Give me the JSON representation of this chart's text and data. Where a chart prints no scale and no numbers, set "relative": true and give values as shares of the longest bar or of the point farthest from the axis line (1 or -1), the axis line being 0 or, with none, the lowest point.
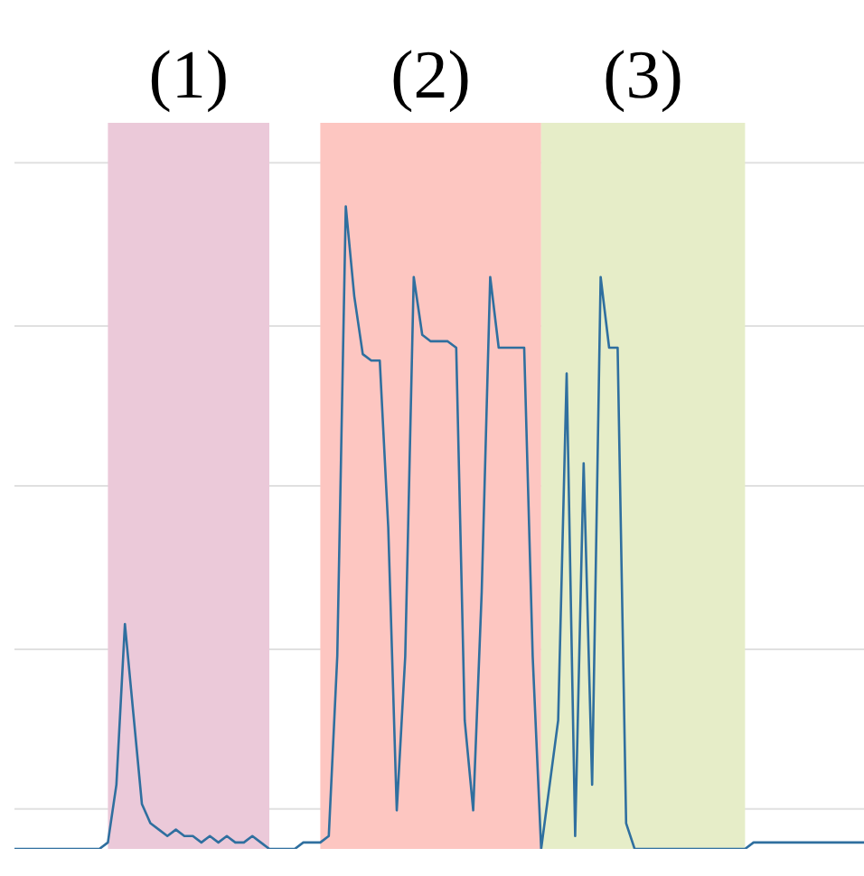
{
  "chart_data": {
    "type": "line",
    "relative": true,
    "tick_labels": false,
    "grid": "y",
    "marker": "none",
    "line_style": "solid",
    "categories": [
      null,
      null,
      null,
      null,
      null,
      null,
      null,
      null,
      null,
      null,
      null,
      null,
      null,
      null,
      null,
      null,
      null,
      null,
      null,
      null,
      null,
      null,
      null,
      null,
      null,
      null,
      null,
      null,
      null,
      null,
      null,
      null,
      null,
      null,
      null,
      null,
      null,
      null,
      null,
      null,
      null,
      null,
      null,
      null,
      null,
      null,
      null,
      null,
      null,
      null,
      null,
      null,
      null,
      null,
      null,
      null,
      null,
      null,
      null,
      null,
      null,
      null,
      null,
      null,
      null,
      null,
      null,
      null,
      null,
      null,
      null,
      null,
      null,
      null,
      null,
      null,
      null,
      null,
      null,
      null,
      null,
      null,
      null,
      null,
      null,
      null,
      null,
      null,
      null,
      null,
      null,
      null,
      null,
      null,
      null,
      null,
      null,
      null,
      null,
      null,
      null
    ],
    "series": [
      {
        "color": "#2f6f9f",
        "values": [
          0,
          0,
          0,
          0,
          0,
          0,
          0,
          0,
          0,
          0,
          0,
          0.01,
          0.1,
          0.35,
          0.21,
          0.07,
          0.04,
          0.03,
          0.02,
          0.03,
          0.02,
          0.02,
          0.01,
          0.02,
          0.01,
          0.02,
          0.01,
          0.01,
          0.02,
          0.01,
          0,
          0,
          0,
          0,
          0.01,
          0.01,
          0.01,
          0.02,
          0.3,
          1.0,
          0.86,
          0.77,
          0.76,
          0.76,
          0.5,
          0.06,
          0.3,
          0.89,
          0.8,
          0.79,
          0.79,
          0.79,
          0.78,
          0.2,
          0.06,
          0.4,
          0.89,
          0.78,
          0.78,
          0.78,
          0.78,
          0.3,
          0,
          0.1,
          0.2,
          0.74,
          0.02,
          0.6,
          0.1,
          0.89,
          0.78,
          0.78,
          0.04,
          0,
          0,
          0,
          0,
          0,
          0,
          0,
          0,
          0,
          0,
          0,
          0,
          0,
          0,
          0.01,
          0.01,
          0.01,
          0.01,
          0.01,
          0.01,
          0.01,
          0.01,
          0.01,
          0.01,
          0.01,
          0.01,
          0.01,
          0.01
        ]
      }
    ],
    "annotations": [
      "(1)",
      "(2)",
      "(3)"
    ]
  }
}
